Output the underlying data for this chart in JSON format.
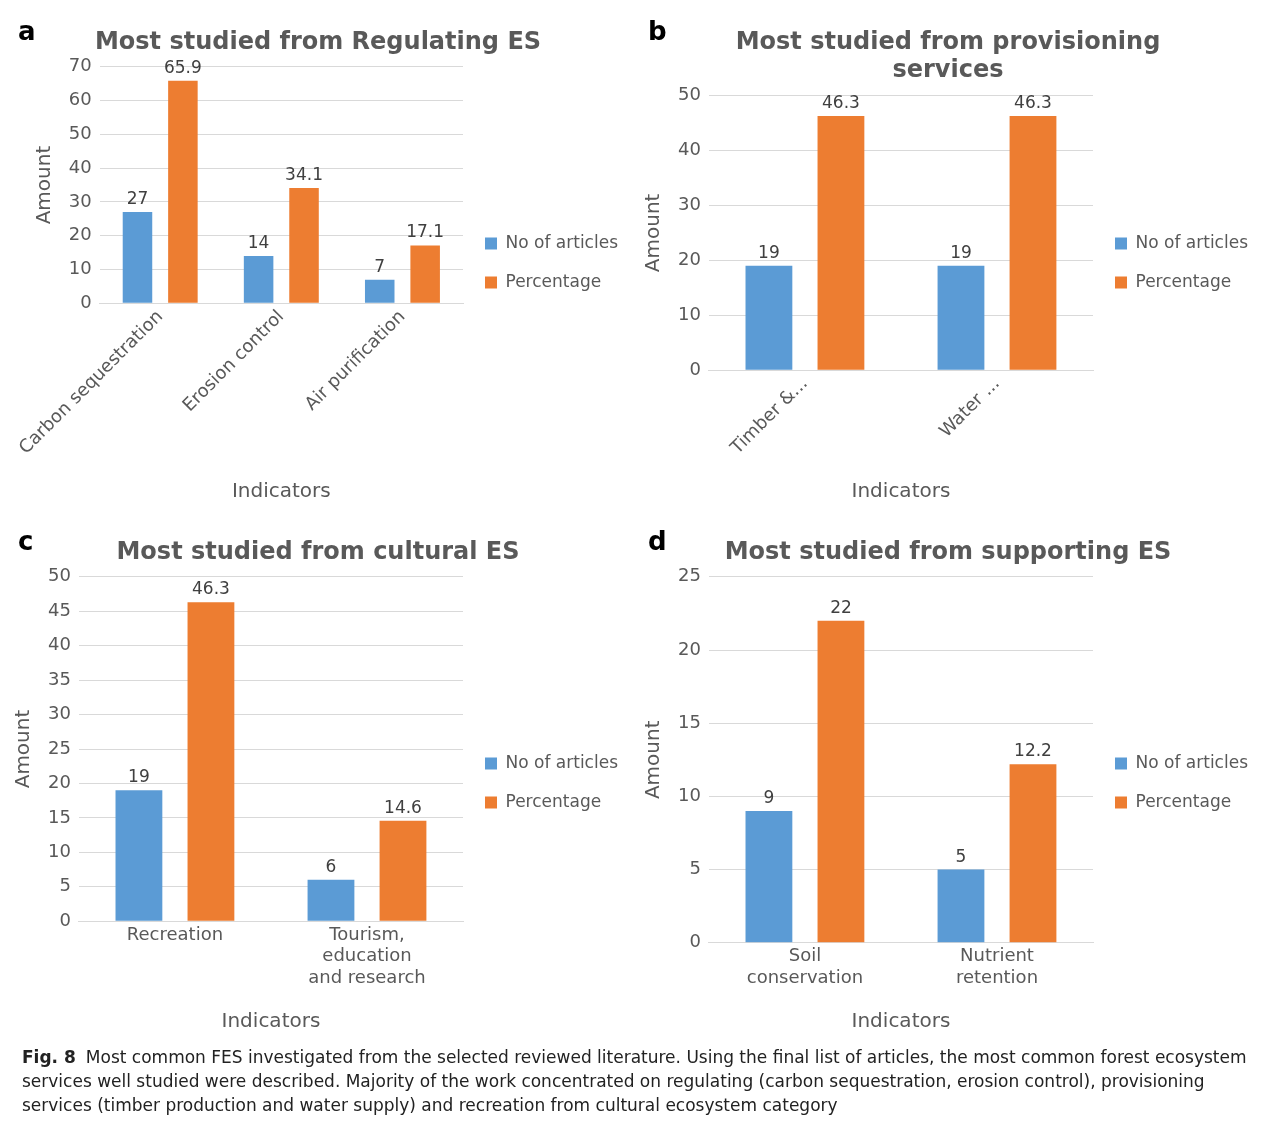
{
  "chart_data": [
    {
      "type": "bar",
      "title": "Most studied from Regulating ES",
      "xlabel": "Indicators",
      "ylabel": "Amount",
      "categories": [
        "Carbon sequestration",
        "Erosion control",
        "Air purification"
      ],
      "series": [
        {
          "name": "No of articles",
          "color": "#5b9bd5",
          "values": [
            27,
            14,
            7
          ]
        },
        {
          "name": "Percentage",
          "color": "#ed7d31",
          "values": [
            65.9,
            34.1,
            17.1
          ]
        }
      ],
      "ylim": [
        0,
        70
      ],
      "yticks": [
        0,
        10,
        20,
        30,
        40,
        50,
        60,
        70
      ],
      "grid": "y",
      "legend": "right",
      "data_labels": true,
      "annotations": [
        "a"
      ]
    },
    {
      "type": "bar",
      "title": "Most studied from provisioning services",
      "xlabel": "Indicators",
      "ylabel": "Amount",
      "categories": [
        "Timber &...",
        "Water ..."
      ],
      "series": [
        {
          "name": "No of articles",
          "color": "#5b9bd5",
          "values": [
            19,
            19
          ]
        },
        {
          "name": "Percentage",
          "color": "#ed7d31",
          "values": [
            46.3,
            46.3
          ]
        }
      ],
      "ylim": [
        0,
        50
      ],
      "yticks": [
        0,
        10,
        20,
        30,
        40,
        50
      ],
      "grid": "y",
      "legend": "right",
      "data_labels": true,
      "annotations": [
        "b"
      ]
    },
    {
      "type": "bar",
      "title": "Most studied from cultural ES",
      "xlabel": "Indicators",
      "ylabel": "Amount",
      "categories": [
        "Recreation",
        "Tourism, education and research"
      ],
      "series": [
        {
          "name": "No of articles",
          "color": "#5b9bd5",
          "values": [
            19,
            6
          ]
        },
        {
          "name": "Percentage",
          "color": "#ed7d31",
          "values": [
            46.3,
            14.6
          ]
        }
      ],
      "ylim": [
        0,
        50
      ],
      "yticks": [
        0,
        5,
        10,
        15,
        20,
        25,
        30,
        35,
        40,
        45,
        50
      ],
      "grid": "y",
      "legend": "right",
      "data_labels": true,
      "annotations": [
        "c"
      ]
    },
    {
      "type": "bar",
      "title": "Most studied from supporting ES",
      "xlabel": "Indicators",
      "ylabel": "Amount",
      "categories": [
        "Soil conservation",
        "Nutrient retention"
      ],
      "series": [
        {
          "name": "No of articles",
          "color": "#5b9bd5",
          "values": [
            9,
            5
          ]
        },
        {
          "name": "Percentage",
          "color": "#ed7d31",
          "values": [
            22,
            12.2
          ]
        }
      ],
      "ylim": [
        0,
        25
      ],
      "yticks": [
        0,
        5,
        10,
        15,
        20,
        25
      ],
      "grid": "y",
      "legend": "right",
      "data_labels": true,
      "annotations": [
        "d",
        "Fig. 8",
        "Most common FES investigated from the selected reviewed literature. Using the final list of articles, the most common forest ecosystem services well studied were described. Majority of the work concentrated on regulating (carbon sequestration, erosion control), provisioning services (timber production and water supply) and recreation from cultural ecosystem category"
      ]
    }
  ]
}
